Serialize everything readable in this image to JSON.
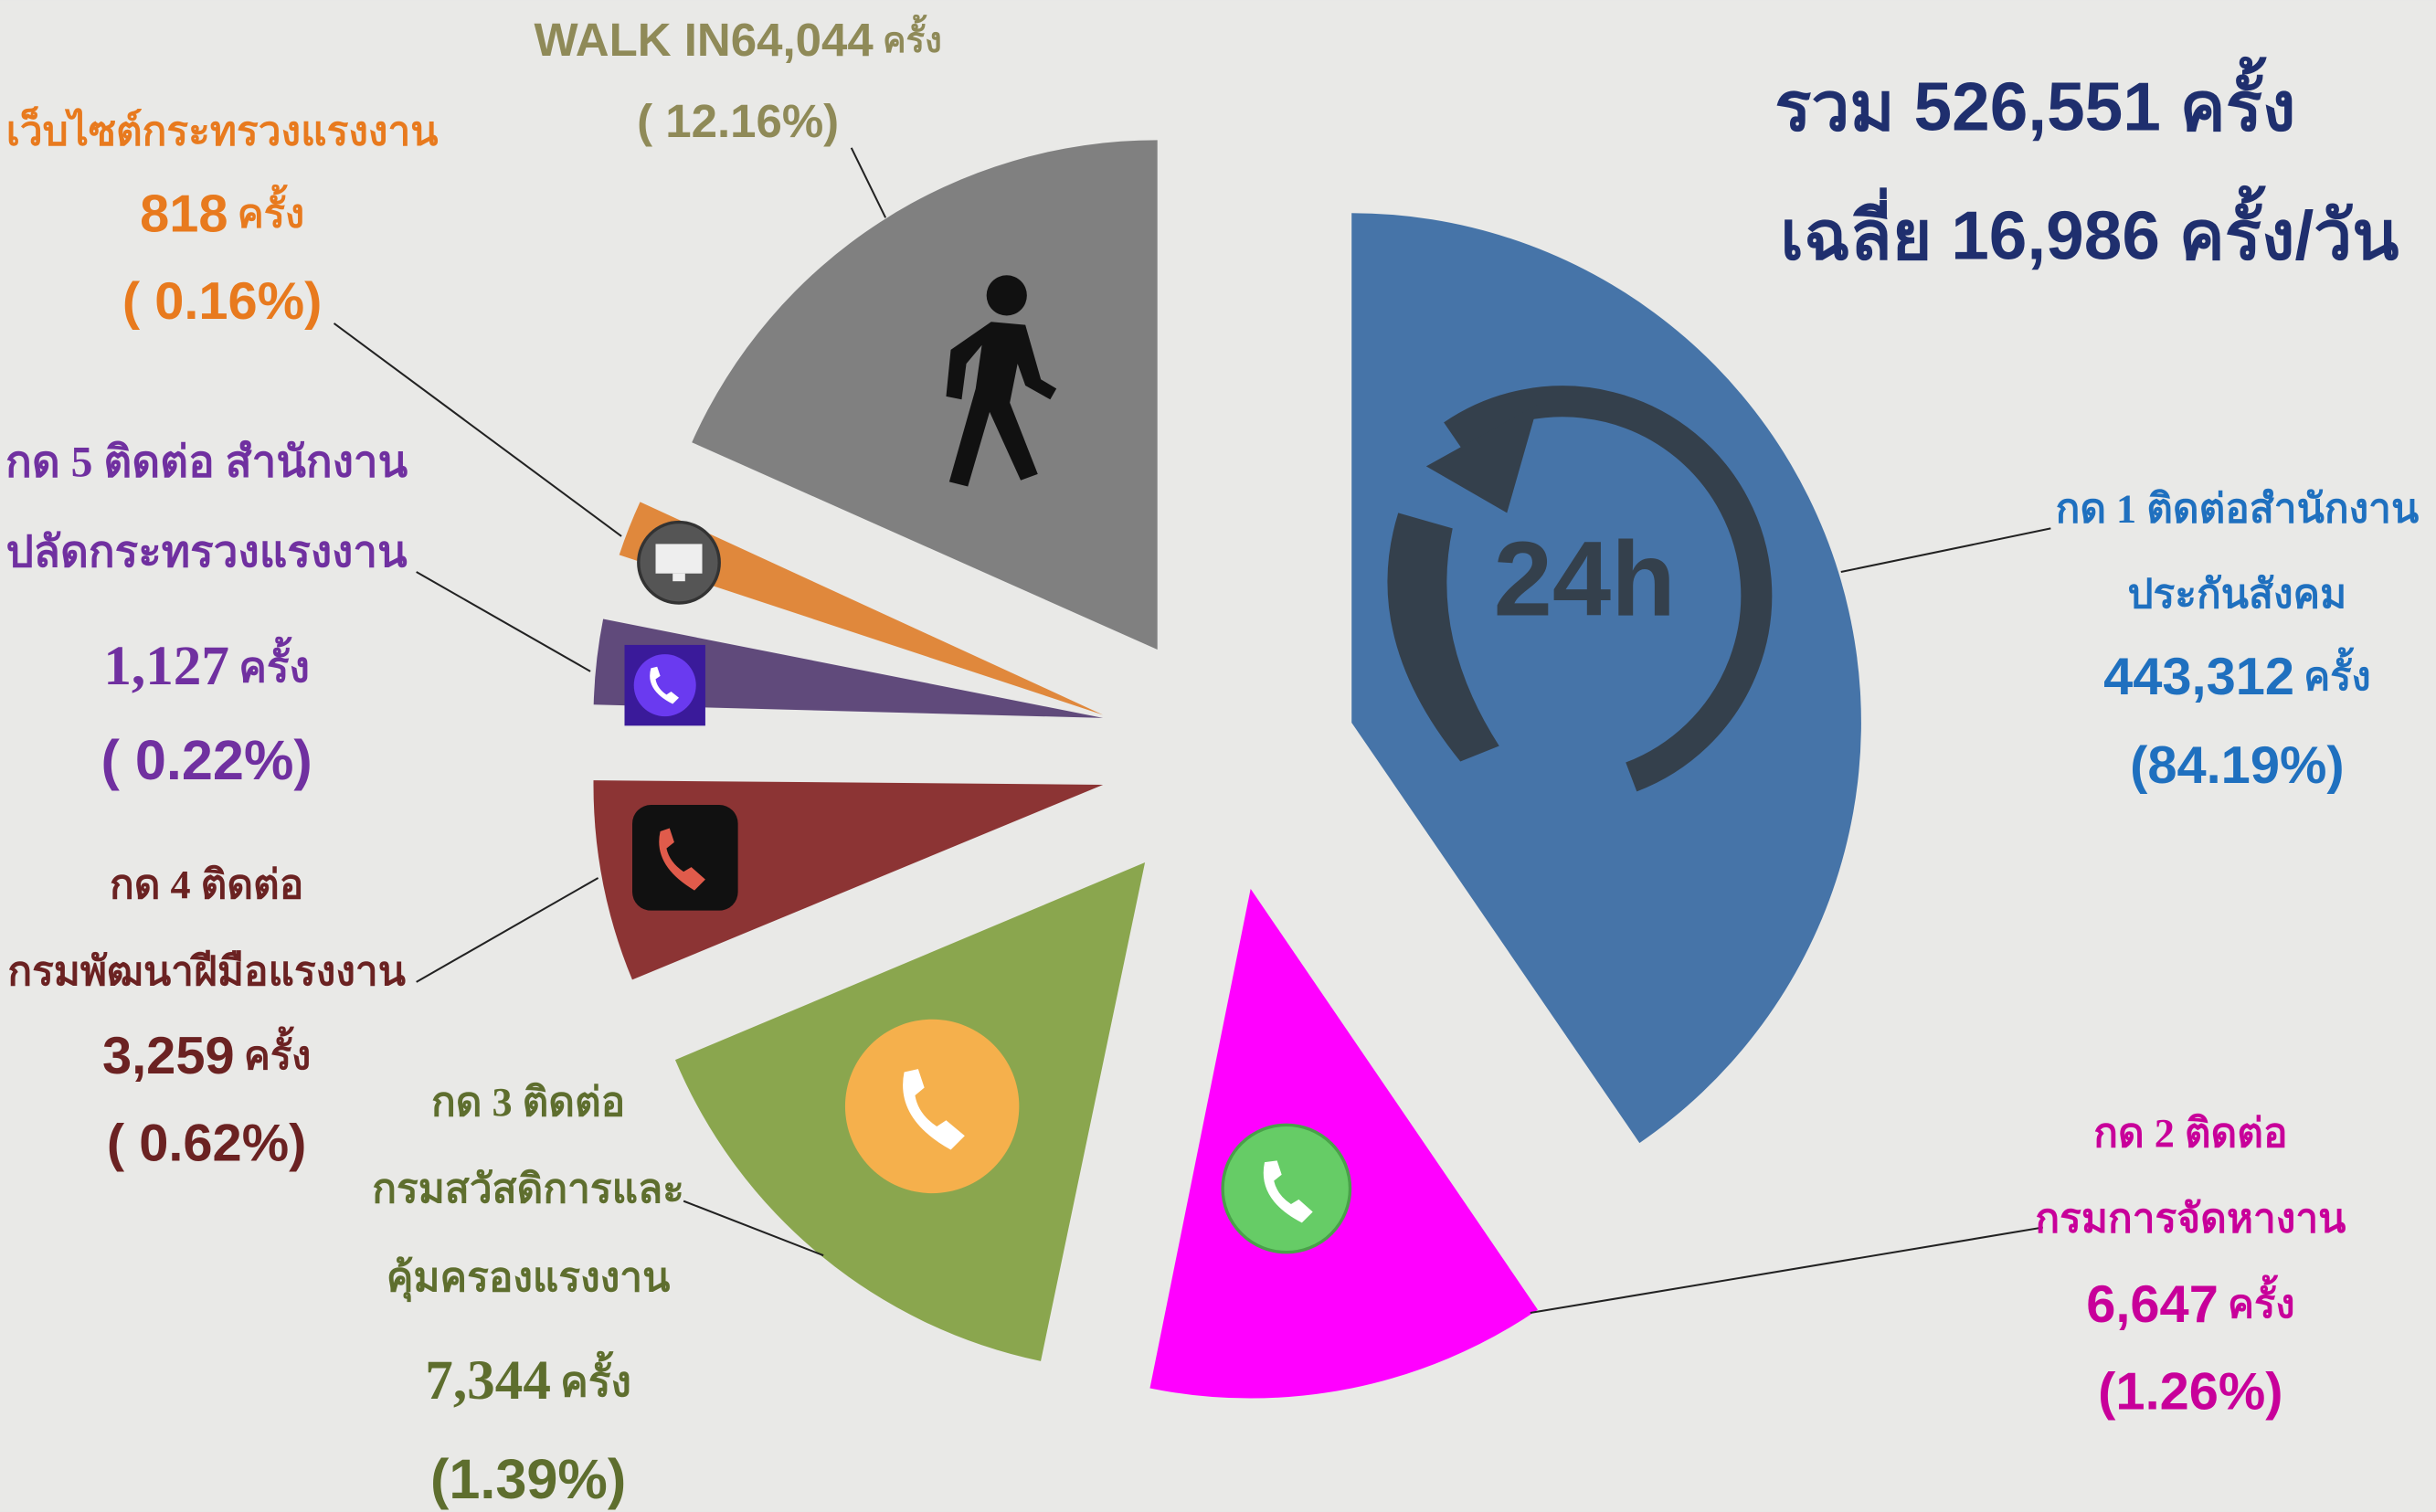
{
  "chart_data": {
    "type": "pie",
    "summary": [
      "รวม 526,551 ครั้ง",
      "เฉลี่ย 16,986 ครั้ง/วัน"
    ],
    "unit": "ครั้ง",
    "icon_text": "24h",
    "segments": [
      {
        "label": [
          "กด 1 ติดต่อสำนักงาน",
          "ประกันสังคม"
        ],
        "count": 443312,
        "count_label": "443,312",
        "percent": 84.19,
        "percent_label": "(84.19%)",
        "color": "#4674a8"
      },
      {
        "label": [
          "กด 2 ติดต่อ",
          "กรมการจัดหางาน"
        ],
        "count": 6647,
        "count_label": "6,647",
        "percent": 1.26,
        "percent_label": "(1.26%)",
        "color": "#ff00ff"
      },
      {
        "label": [
          "กด 3 ติดต่อ",
          "กรมสวัสดิการและ",
          "คุ้มครองแรงงาน"
        ],
        "count": 7344,
        "count_label": "7,344",
        "percent": 1.39,
        "percent_label": "(1.39%)",
        "color": "#8aa64e"
      },
      {
        "label": [
          "กด 4 ติดต่อ",
          "กรมพัฒนาฝีมือแรงงาน"
        ],
        "count": 3259,
        "count_label": "3,259",
        "percent": 0.62,
        "percent_label": "( 0.62%)",
        "color": "#8c3434"
      },
      {
        "label": [
          "กด 5 ติดต่อ สำนักงาน",
          "ปลัดกระทรวงแรงงาน"
        ],
        "count": 1127,
        "count_label": "1,127",
        "percent": 0.22,
        "percent_label": "( 0.22%)",
        "color": "#604a7b"
      },
      {
        "label": [
          "เว็บไซต์กระทรวงแรงงาน"
        ],
        "count": 818,
        "count_label": "818",
        "percent": 0.16,
        "percent_label": "( 0.16%)",
        "color": "#e0883c"
      },
      {
        "label": [
          "WALK IN"
        ],
        "count": 64044,
        "count_label": "64,044",
        "percent": 12.16,
        "percent_label": "( 12.16%)",
        "color": "#808080"
      }
    ]
  }
}
